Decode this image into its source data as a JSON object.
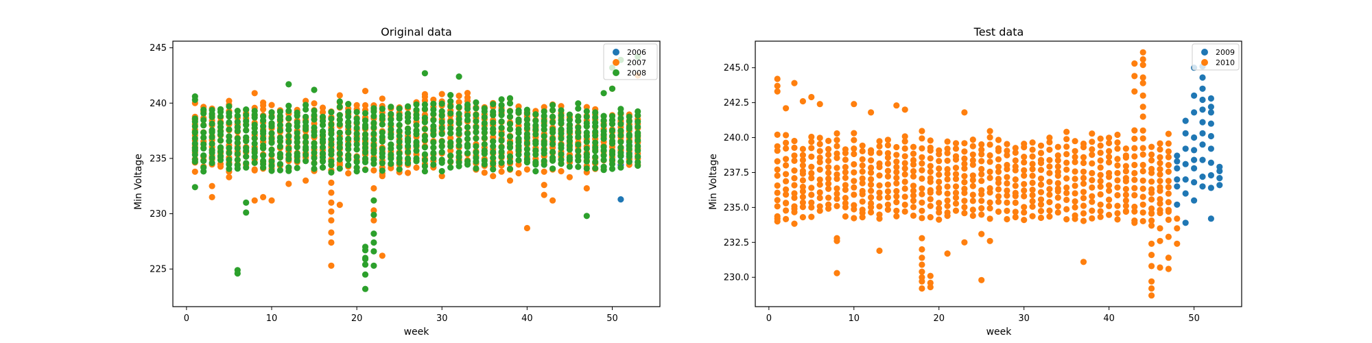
{
  "colors": {
    "c2006": "#1f77b4",
    "c2007": "#ff7f0e",
    "c2008": "#2ca02c",
    "c2009": "#1f77b4",
    "c2010": "#ff7f0e"
  },
  "chart_data": [
    {
      "type": "scatter",
      "title": "Original data",
      "xlabel": "week",
      "ylabel": "Min Voltage",
      "xlim": [
        -1.6,
        55.6
      ],
      "ylim": [
        221.6,
        245.6
      ],
      "xticks": [
        0,
        10,
        20,
        30,
        40,
        50
      ],
      "yticks": [
        225,
        230,
        235,
        240,
        245
      ],
      "ytick_labels": [
        "225",
        "230",
        "235",
        "240",
        "245"
      ],
      "legend_position": "top-right",
      "grid": false,
      "series": [
        {
          "name": "2006",
          "color": "#1f77b4",
          "x": [
            51,
            51,
            51,
            51,
            52,
            52,
            52,
            52
          ],
          "y": [
            231.3,
            234.4,
            235.2,
            236.0,
            234.7,
            235.0,
            235.5,
            236.2
          ]
        },
        {
          "name": "2007",
          "color": "#ff7f0e",
          "x": [
            1,
            1,
            1,
            1,
            3,
            3,
            3,
            5,
            5,
            8,
            8,
            8,
            9,
            9,
            9,
            10,
            10,
            12,
            12,
            14,
            14,
            15,
            17,
            17,
            17,
            17,
            17,
            17,
            17,
            17,
            18,
            18,
            18,
            21,
            21,
            21,
            21,
            22,
            22,
            22,
            22,
            23,
            23,
            23,
            25,
            25,
            28,
            28,
            30,
            30,
            33,
            33,
            36,
            36,
            38,
            38,
            40,
            40,
            40,
            42,
            42,
            42,
            43,
            43,
            45,
            45,
            47,
            47,
            49,
            49,
            50,
            50,
            51,
            51,
            53,
            53,
            53
          ],
          "y": [
            233.8,
            236.0,
            240.0,
            238.5,
            231.5,
            232.5,
            239.5,
            233.3,
            240.2,
            231.2,
            234.0,
            240.9,
            231.5,
            236.5,
            239.8,
            231.2,
            234.5,
            232.7,
            238.0,
            233.0,
            240.2,
            234.0,
            225.3,
            227.4,
            228.3,
            229.4,
            230.2,
            231.0,
            231.9,
            232.8,
            230.8,
            234.4,
            240.7,
            234.0,
            236.5,
            239.8,
            241.1,
            229.4,
            230.3,
            232.3,
            236.1,
            226.2,
            233.4,
            240.4,
            234.0,
            239.5,
            234.5,
            240.8,
            233.4,
            237.4,
            234.5,
            240.5,
            233.4,
            240.0,
            233.0,
            240.4,
            234.0,
            239.0,
            228.7,
            231.7,
            232.6,
            233.8,
            231.2,
            234.0,
            233.3,
            238.0,
            232.3,
            235.5,
            234.0,
            238.4,
            235.5,
            241.3,
            235.8,
            237.5,
            236.5,
            237.2,
            242.5
          ]
        },
        {
          "name": "2008",
          "color": "#2ca02c",
          "x": [
            1,
            1,
            1,
            6,
            6,
            7,
            7,
            12,
            15,
            21,
            21,
            21,
            21,
            21,
            21,
            21,
            22,
            22,
            22,
            22,
            22,
            22,
            28,
            32,
            47,
            49,
            50,
            50,
            51,
            53
          ],
          "y": [
            232.4,
            240.3,
            240.6,
            224.6,
            224.9,
            230.1,
            231.0,
            241.7,
            241.2,
            223.2,
            225.4,
            226.0,
            226.7,
            227.0,
            225.9,
            224.5,
            225.3,
            226.6,
            227.4,
            228.2,
            229.9,
            231.2,
            242.7,
            242.4,
            229.8,
            240.9,
            243.2,
            241.3,
            243.9,
            244.2
          ]
        }
      ],
      "cloud": {
        "x_start": 1,
        "x_end": 53,
        "low": 234.3,
        "high": 239.3,
        "high_bump": 0.9,
        "bump_center": 30,
        "bump_width": 10
      }
    },
    {
      "type": "scatter",
      "title": "Test data",
      "xlabel": "week",
      "ylabel": "Min Voltage",
      "xlim": [
        -1.6,
        55.6
      ],
      "ylim": [
        227.9,
        246.9
      ],
      "xticks": [
        0,
        10,
        20,
        30,
        40,
        50
      ],
      "yticks": [
        230.0,
        232.5,
        235.0,
        237.5,
        240.0,
        242.5,
        245.0
      ],
      "ytick_labels": [
        "230.0",
        "232.5",
        "235.0",
        "237.5",
        "240.0",
        "242.5",
        "245.0"
      ],
      "legend_position": "top-right",
      "grid": false,
      "series": [
        {
          "name": "2009",
          "color": "#1f77b4",
          "x": [
            48,
            48,
            48,
            48,
            48,
            48,
            49,
            49,
            49,
            49,
            49,
            49,
            49,
            50,
            50,
            50,
            50,
            50,
            50,
            50,
            50,
            50,
            51,
            51,
            51,
            51,
            51,
            51,
            51,
            51,
            51,
            51,
            51,
            52,
            52,
            52,
            52,
            52,
            52,
            52,
            52,
            52,
            52,
            53,
            53,
            53,
            53
          ],
          "y": [
            235.2,
            236.5,
            237.0,
            237.8,
            238.3,
            238.7,
            233.9,
            236.0,
            237.0,
            238.1,
            239.2,
            240.3,
            241.2,
            235.5,
            236.8,
            237.8,
            238.4,
            239.1,
            240.0,
            241.8,
            243.0,
            245.0,
            236.5,
            237.2,
            238.4,
            239.5,
            240.3,
            241.1,
            242.0,
            242.7,
            243.5,
            244.3,
            245.1,
            234.2,
            236.4,
            237.3,
            238.2,
            239.2,
            240.1,
            241.0,
            241.8,
            242.2,
            242.8,
            236.6,
            237.1,
            237.6,
            237.9
          ]
        },
        {
          "name": "2010",
          "color": "#ff7f0e",
          "x": [
            1,
            1,
            1,
            1,
            2,
            2,
            3,
            3,
            4,
            4,
            5,
            6,
            8,
            8,
            8,
            13,
            15,
            18,
            18,
            18,
            18,
            18,
            18,
            18,
            18,
            19,
            19,
            19,
            19,
            21,
            21,
            23,
            23,
            25,
            25,
            26,
            37,
            42,
            43,
            43,
            43,
            43,
            44,
            44,
            44,
            44,
            44,
            44,
            44,
            44,
            45,
            45,
            45,
            45,
            45,
            45,
            45,
            45,
            46,
            46,
            46,
            46,
            47,
            47,
            47,
            47,
            48,
            48,
            48,
            10,
            12,
            16,
            11
          ],
          "y": [
            234.2,
            243.7,
            244.2,
            243.3,
            235.3,
            242.1,
            234.9,
            243.9,
            234.3,
            242.6,
            242.9,
            242.4,
            230.3,
            232.6,
            232.8,
            231.9,
            242.3,
            229.2,
            229.7,
            230.0,
            230.4,
            230.9,
            231.4,
            232.0,
            232.8,
            229.3,
            229.6,
            230.1,
            234.3,
            231.7,
            234.4,
            232.5,
            241.8,
            229.8,
            233.1,
            232.6,
            231.1,
            234.7,
            233.9,
            243.3,
            244.4,
            245.3,
            244.3,
            245.6,
            246.1,
            245.2,
            243.9,
            243.0,
            242.2,
            241.5,
            228.7,
            229.2,
            229.7,
            230.8,
            231.6,
            232.4,
            233.7,
            234.6,
            230.7,
            232.6,
            233.5,
            234.6,
            230.6,
            231.4,
            232.9,
            234.7,
            232.4,
            233.5,
            234.2,
            242.4,
            241.8,
            242.0,
            234.3
          ]
        }
      ],
      "cloud": {
        "x_start": 1,
        "x_end": 47,
        "low": 234.5,
        "high": 239.8,
        "high_bump": 0.0,
        "bump_center": 30,
        "bump_width": 10
      }
    }
  ]
}
